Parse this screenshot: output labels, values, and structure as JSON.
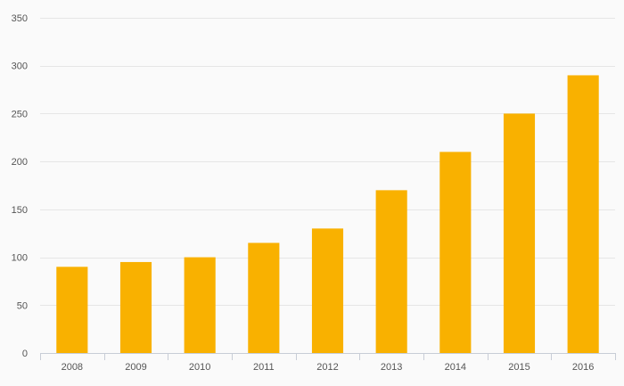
{
  "chart_data": {
    "type": "bar",
    "categories": [
      "2008",
      "2009",
      "2010",
      "2011",
      "2012",
      "2013",
      "2014",
      "2015",
      "2016"
    ],
    "values": [
      90,
      95,
      100,
      115,
      130,
      170,
      210,
      250,
      290
    ],
    "title": "",
    "xlabel": "",
    "ylabel": "",
    "ylim": [
      0,
      350
    ],
    "yticks": [
      0,
      50,
      100,
      150,
      200,
      250,
      300,
      350
    ],
    "grid": true,
    "legend": "none",
    "colors": {
      "bar": "#f9b100",
      "grid": "#e6e6e6",
      "axis": "#c8cdd6",
      "text": "#555555",
      "background": "#fafafa"
    }
  }
}
